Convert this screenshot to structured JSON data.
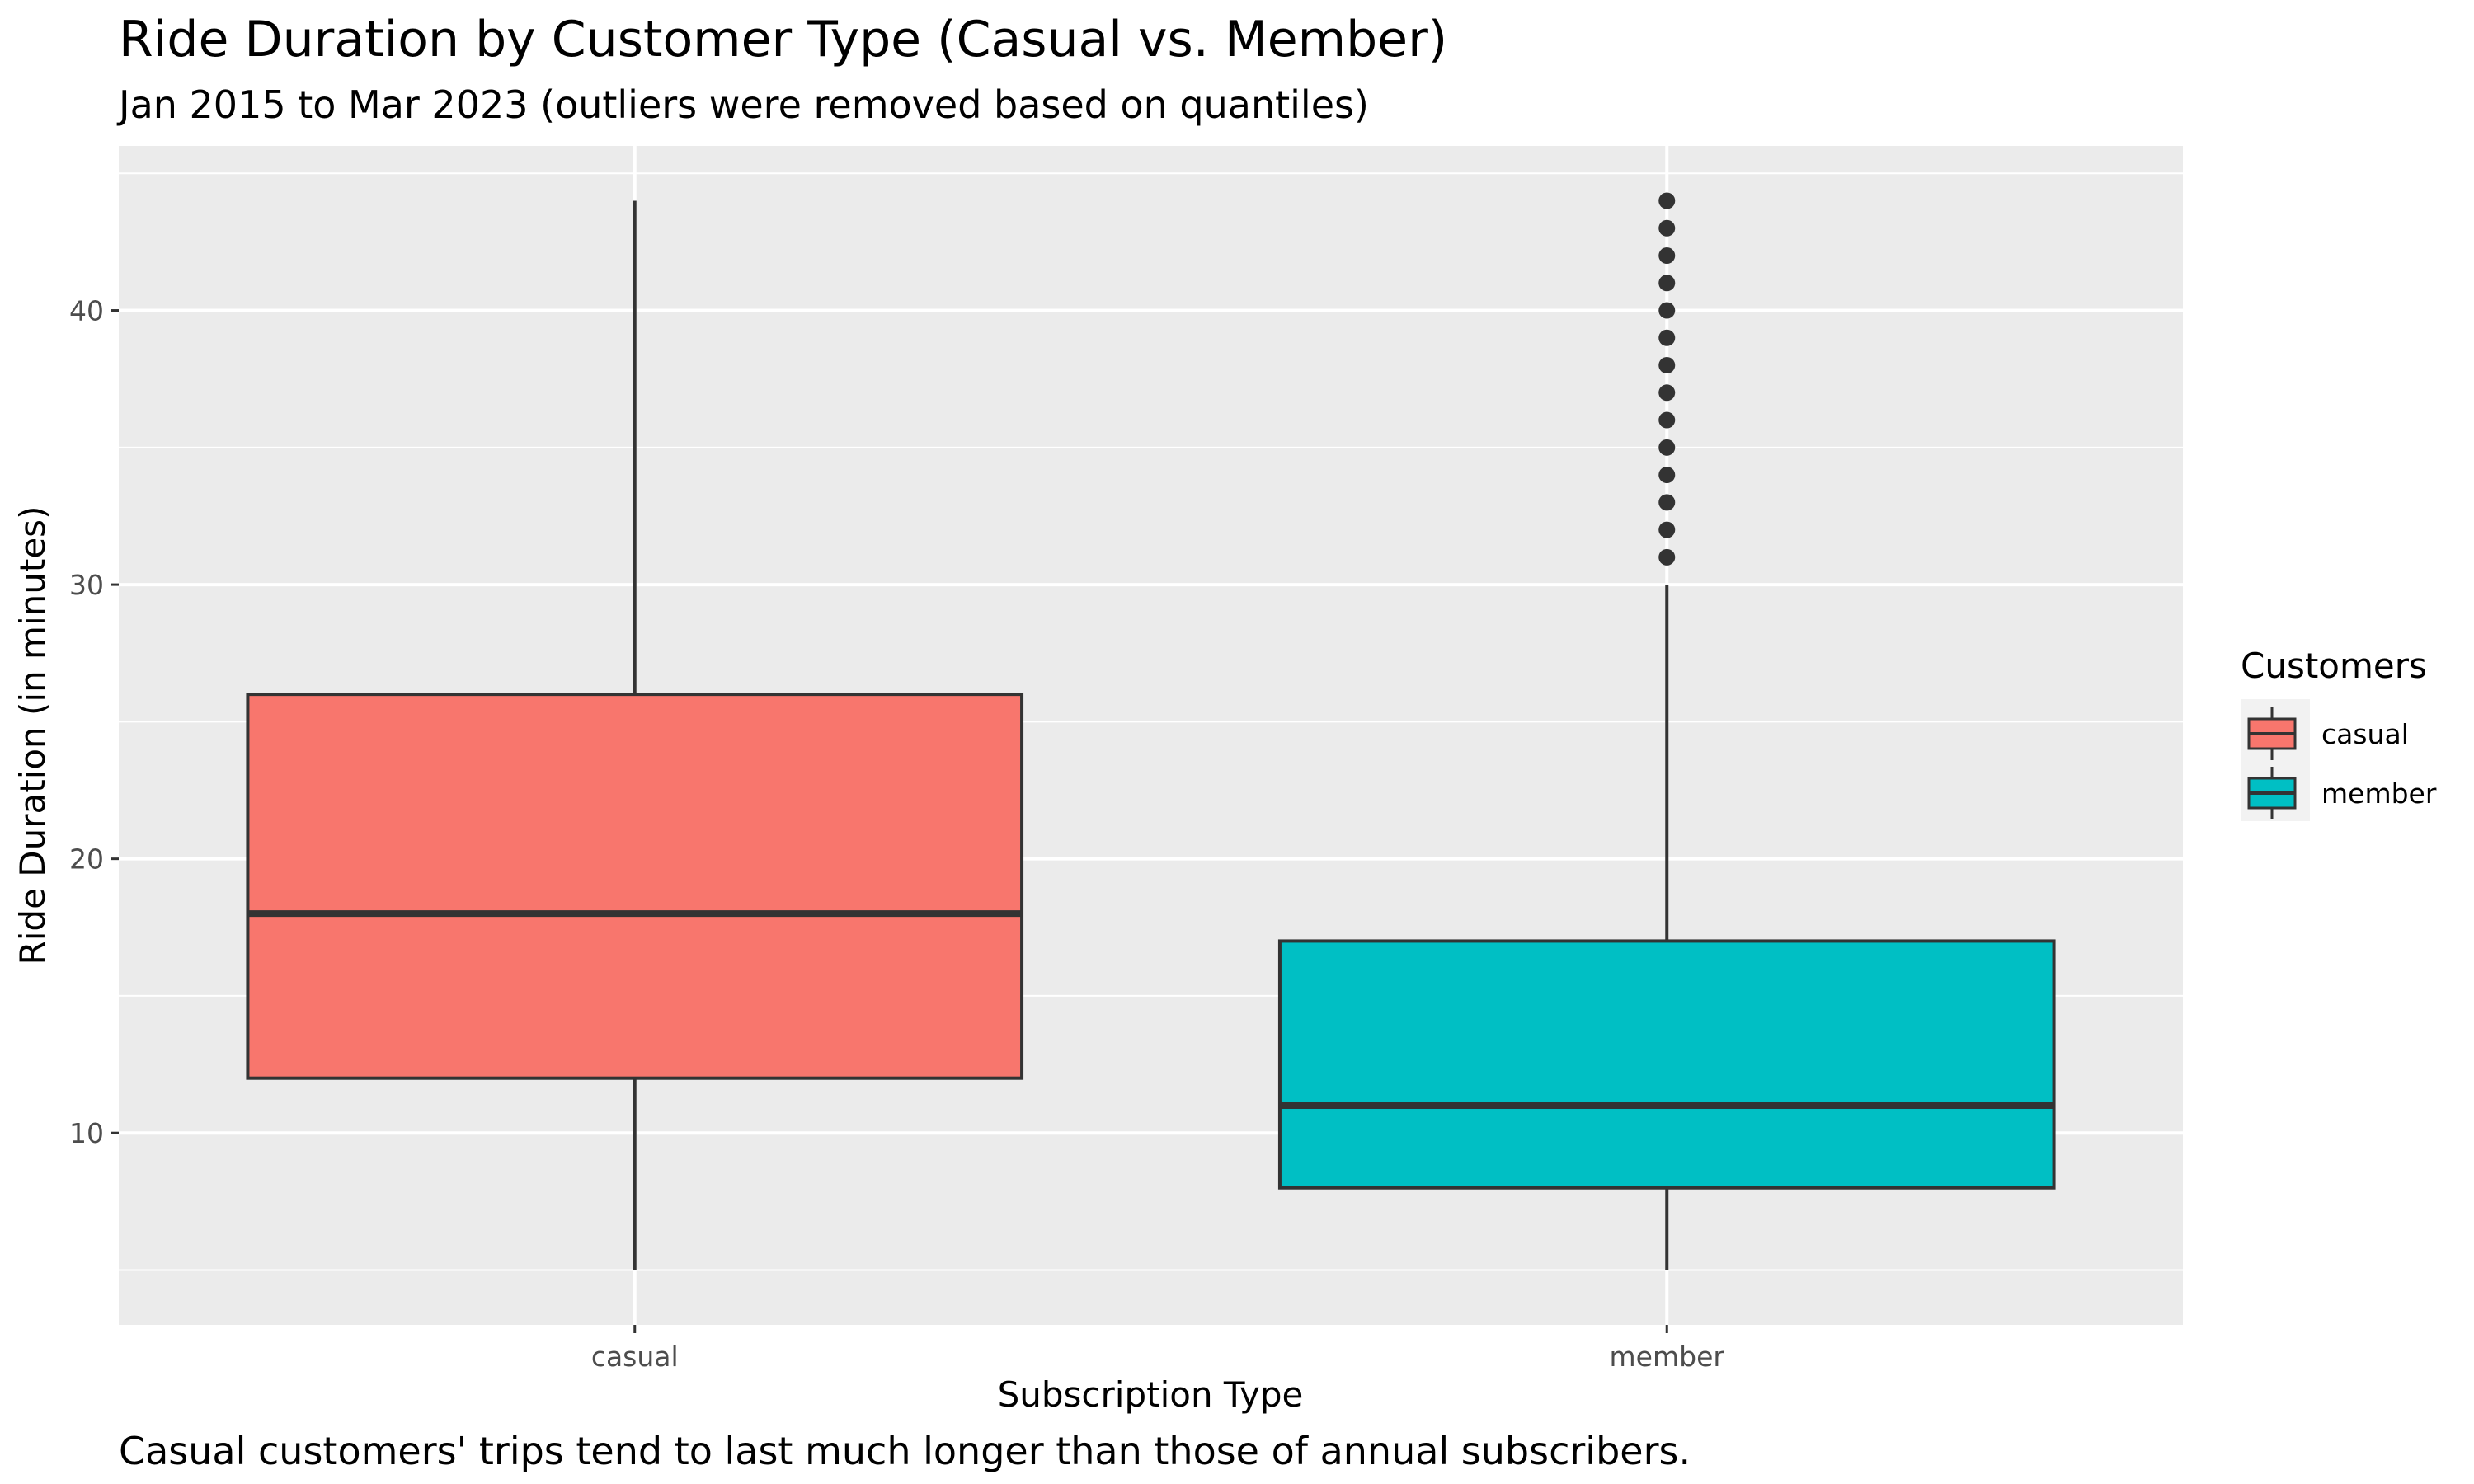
{
  "chart_data": {
    "type": "boxplot",
    "title": "Ride Duration by Customer Type (Casual vs. Member)",
    "subtitle": "Jan 2015 to Mar 2023 (outliers were removed based on quantiles)",
    "caption": "Casual customers' trips tend to last much longer than those of annual subscribers.",
    "xlabel": "Subscription Type",
    "ylabel": "Ride Duration (in minutes)",
    "ylim": [
      3,
      46
    ],
    "yticks": [
      10,
      20,
      30,
      40
    ],
    "yticks_minor": [
      5,
      15,
      25,
      35,
      45
    ],
    "grid": true,
    "categories": [
      "casual",
      "member"
    ],
    "series": [
      {
        "name": "casual",
        "color": "#F8766D",
        "min": 5,
        "q1": 12,
        "median": 18,
        "q3": 26,
        "max": 44,
        "outliers": []
      },
      {
        "name": "member",
        "color": "#00BFC4",
        "min": 5,
        "q1": 8,
        "median": 11,
        "q3": 17,
        "max": 30,
        "outliers": [
          31,
          32,
          33,
          34,
          35,
          36,
          37,
          38,
          39,
          40,
          41,
          42,
          43,
          44
        ]
      }
    ],
    "legend": {
      "title": "Customers",
      "position": "right"
    }
  },
  "colors": {
    "panel": "#EBEBEB",
    "grid": "#FFFFFF",
    "box_line": "#333333"
  }
}
